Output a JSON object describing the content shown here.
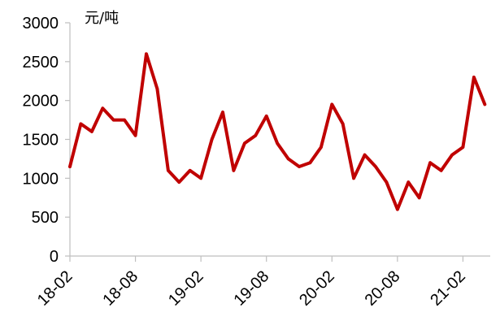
{
  "chart_data": {
    "type": "line",
    "title": "",
    "xlabel": "",
    "ylabel": "元/吨",
    "ylim": [
      0,
      3000
    ],
    "yticks": [
      0,
      500,
      1000,
      1500,
      2000,
      2500,
      3000
    ],
    "xticks": [
      "18-02",
      "18-08",
      "19-02",
      "19-08",
      "20-02",
      "20-08",
      "21-02"
    ],
    "grid": false,
    "legend": "none",
    "series": [
      {
        "color": "#c00000",
        "x": [
          "2018-02",
          "2018-03",
          "2018-04",
          "2018-05",
          "2018-06",
          "2018-07",
          "2018-08",
          "2018-09",
          "2018-10",
          "2018-11",
          "2018-12",
          "2019-01",
          "2019-02",
          "2019-03",
          "2019-04",
          "2019-05",
          "2019-06",
          "2019-07",
          "2019-08",
          "2019-09",
          "2019-10",
          "2019-11",
          "2019-12",
          "2020-01",
          "2020-02",
          "2020-03",
          "2020-04",
          "2020-05",
          "2020-06",
          "2020-07",
          "2020-08",
          "2020-09",
          "2020-10",
          "2020-11",
          "2020-12",
          "2021-01",
          "2021-02",
          "2021-03",
          "2021-04"
        ],
        "values": [
          1150,
          1700,
          1600,
          1900,
          1750,
          1750,
          1550,
          2600,
          2150,
          1100,
          950,
          1100,
          1000,
          1500,
          1850,
          1100,
          1450,
          1550,
          1800,
          1450,
          1250,
          1150,
          1200,
          1400,
          1950,
          1700,
          1000,
          1300,
          1150,
          950,
          600,
          950,
          750,
          1200,
          1100,
          1300,
          1400,
          2300,
          1950
        ]
      }
    ]
  }
}
